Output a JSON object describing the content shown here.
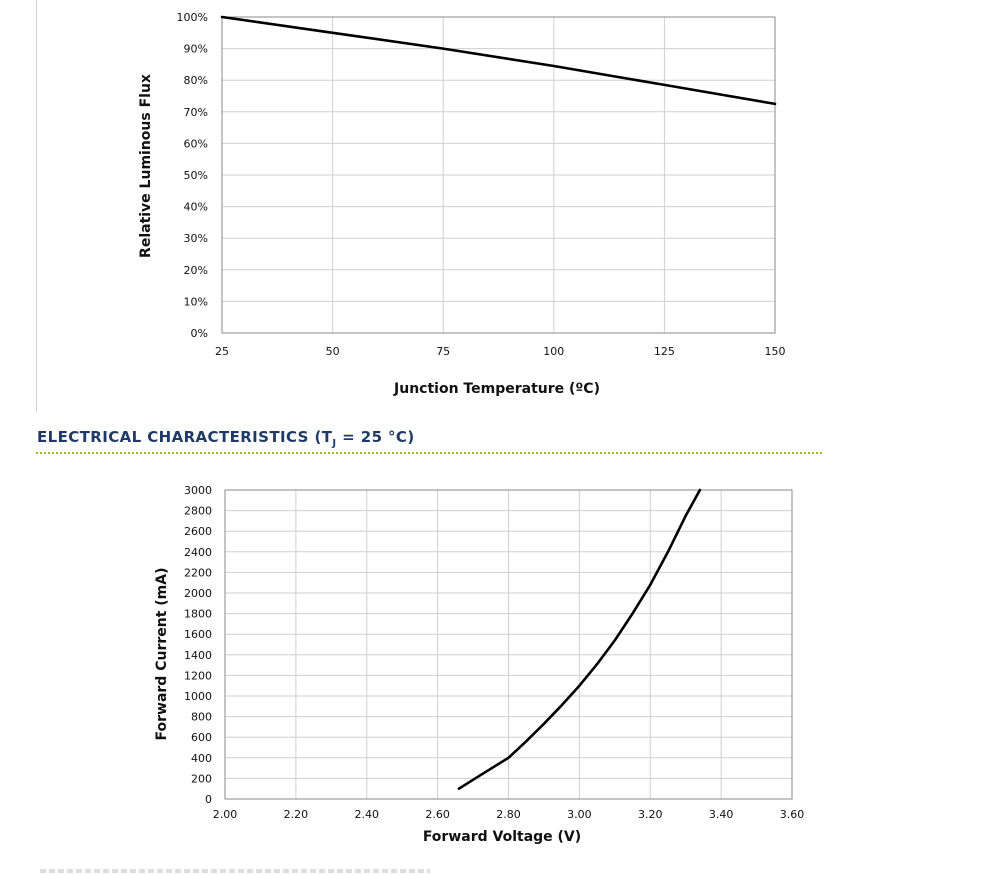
{
  "section_heading": {
    "prefix": "ELECTRICAL CHARACTERISTICS (T",
    "subscript": "J",
    "suffix": " = 25 °C)"
  },
  "chart_data": [
    {
      "type": "line",
      "title": "",
      "xlabel": "Junction Temperature (ºC)",
      "ylabel": "Relative Luminous Flux",
      "xlim": [
        25,
        150
      ],
      "ylim": [
        0,
        100
      ],
      "x_ticks": [
        25,
        50,
        75,
        100,
        125,
        150
      ],
      "x_tick_labels": [
        "25",
        "50",
        "75",
        "100",
        "125",
        "150"
      ],
      "y_ticks": [
        0,
        10,
        20,
        30,
        40,
        50,
        60,
        70,
        80,
        90,
        100
      ],
      "y_tick_labels": [
        "0%",
        "10%",
        "20%",
        "30%",
        "40%",
        "50%",
        "60%",
        "70%",
        "80%",
        "90%",
        "100%"
      ],
      "grid": true,
      "series": [
        {
          "x": [
            25,
            50,
            75,
            100,
            125,
            150
          ],
          "y": [
            100,
            95,
            90,
            84.5,
            78.5,
            72.5
          ]
        }
      ]
    },
    {
      "type": "line",
      "title": "",
      "xlabel": "Forward Voltage (V)",
      "ylabel": "Forward Current (mA)",
      "xlim": [
        2.0,
        3.6
      ],
      "ylim": [
        0,
        3000
      ],
      "x_ticks": [
        2.0,
        2.2,
        2.4,
        2.6,
        2.8,
        3.0,
        3.2,
        3.4,
        3.6
      ],
      "x_tick_labels": [
        "2.00",
        "2.20",
        "2.40",
        "2.60",
        "2.80",
        "3.00",
        "3.20",
        "3.40",
        "3.60"
      ],
      "y_ticks": [
        0,
        200,
        400,
        600,
        800,
        1000,
        1200,
        1400,
        1600,
        1800,
        2000,
        2200,
        2400,
        2600,
        2800,
        3000
      ],
      "y_tick_labels": [
        "0",
        "200",
        "400",
        "600",
        "800",
        "1000",
        "1200",
        "1400",
        "1600",
        "1800",
        "2000",
        "2200",
        "2400",
        "2600",
        "2800",
        "3000"
      ],
      "grid": true,
      "series": [
        {
          "x": [
            2.66,
            2.72,
            2.8,
            2.85,
            2.9,
            2.95,
            3.0,
            3.05,
            3.1,
            3.15,
            3.2,
            3.25,
            3.3,
            3.34
          ],
          "y": [
            100,
            230,
            400,
            560,
            730,
            910,
            1100,
            1310,
            1540,
            1800,
            2080,
            2400,
            2750,
            3000
          ]
        }
      ]
    }
  ]
}
